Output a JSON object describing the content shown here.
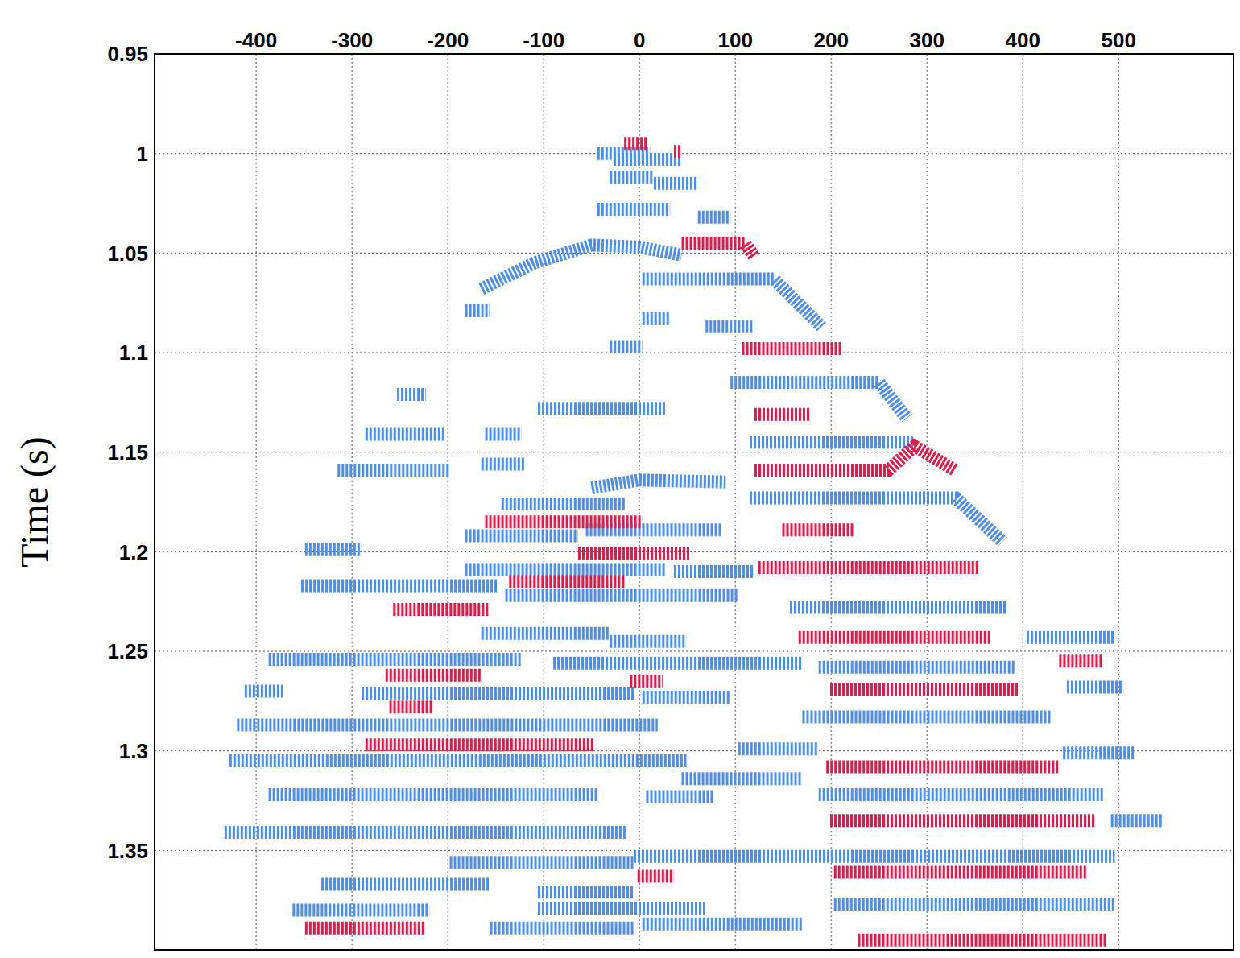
{
  "chart_data": {
    "type": "line",
    "y_label": "Time (s)",
    "xlim": [
      -506,
      620
    ],
    "xticks": [
      -400,
      -300,
      -200,
      -100,
      0,
      100,
      200,
      300,
      400,
      500
    ],
    "ylim": [
      0.95,
      1.4
    ],
    "yticks": [
      0.95,
      1,
      1.05,
      1.1,
      1.15,
      1.2,
      1.25,
      1.3,
      1.35
    ],
    "grid": true,
    "series": [
      {
        "color": "#4a8ef0",
        "line_style": "dashed",
        "x": [
          -44,
          11,
          11,
          -27,
          44,
          44,
          -31,
          15,
          15,
          15,
          61,
          61,
          -44,
          32,
          32,
          61,
          95,
          95,
          -165,
          -110,
          -50,
          0,
          44,
          44,
          3,
          140,
          190,
          190,
          3,
          32,
          32,
          69,
          120,
          120,
          -31,
          3,
          3,
          -182,
          -156,
          -156,
          95,
          250,
          279,
          279,
          -106,
          28,
          28,
          -253,
          -223,
          -223,
          -286,
          -203,
          -203,
          -161,
          -123,
          -123,
          115,
          287,
          287,
          -165,
          -119,
          -119,
          -315,
          -198,
          -198,
          -50,
          0,
          90,
          90,
          115,
          330,
          379,
          379,
          -144,
          -14,
          -14,
          -182,
          -64,
          -64,
          -56,
          86,
          86,
          -349,
          -290,
          -290,
          -182,
          28,
          28,
          36,
          120,
          120,
          -353,
          -148,
          -148,
          -140,
          103,
          103,
          157,
          383,
          383,
          -165,
          -31,
          -31,
          404,
          496,
          496,
          -31,
          49,
          49,
          -387,
          -123,
          -123,
          -90,
          170,
          170,
          187,
          392,
          392,
          446,
          505,
          505,
          -412,
          -370,
          -370,
          -290,
          -6,
          -6,
          3,
          95,
          95,
          170,
          429,
          429,
          -420,
          19,
          19,
          103,
          187,
          187,
          -428,
          49,
          49,
          44,
          170,
          170,
          442,
          517,
          517,
          187,
          484,
          484,
          -387,
          -44,
          -44,
          7,
          78,
          78,
          492,
          546,
          546,
          -433,
          -14,
          -14,
          -6,
          496,
          496,
          -198,
          -6,
          -6,
          -332,
          -156,
          -156,
          -106,
          -6,
          -6,
          203,
          496,
          496,
          -362,
          -219,
          -219,
          -106,
          69,
          69,
          3,
          170,
          170,
          -156,
          -6
        ],
        "values": [
          1.0,
          1.0,
          null,
          1.003,
          1.003,
          null,
          1.012,
          1.012,
          null,
          1.015,
          1.015,
          null,
          1.028,
          1.028,
          null,
          1.032,
          1.032,
          null,
          1.068,
          1.055,
          1.046,
          1.047,
          1.051,
          null,
          1.063,
          1.063,
          1.087,
          null,
          1.083,
          1.083,
          null,
          1.087,
          1.087,
          null,
          1.097,
          1.097,
          null,
          1.079,
          1.079,
          null,
          1.115,
          1.115,
          1.133,
          null,
          1.128,
          1.128,
          null,
          1.121,
          1.121,
          null,
          1.141,
          1.141,
          null,
          1.141,
          1.141,
          null,
          1.145,
          1.145,
          null,
          1.156,
          1.156,
          null,
          1.159,
          1.159,
          null,
          1.168,
          1.164,
          1.165,
          null,
          1.173,
          1.173,
          1.195,
          null,
          1.176,
          1.176,
          null,
          1.192,
          1.192,
          null,
          1.189,
          1.189,
          null,
          1.199,
          1.199,
          null,
          1.209,
          1.209,
          null,
          1.21,
          1.21,
          null,
          1.217,
          1.217,
          null,
          1.222,
          1.222,
          null,
          1.228,
          1.228,
          null,
          1.241,
          1.241,
          null,
          1.243,
          1.243,
          null,
          1.245,
          1.245,
          null,
          1.254,
          1.254,
          null,
          1.256,
          1.256,
          null,
          1.258,
          1.258,
          null,
          1.268,
          1.268,
          null,
          1.27,
          1.27,
          null,
          1.271,
          1.271,
          null,
          1.273,
          1.273,
          null,
          1.283,
          1.283,
          null,
          1.287,
          1.287,
          null,
          1.299,
          1.299,
          null,
          1.305,
          1.305,
          null,
          1.314,
          1.314,
          null,
          1.301,
          1.301,
          null,
          1.322,
          1.322,
          null,
          1.322,
          1.322,
          null,
          1.323,
          1.323,
          null,
          1.335,
          1.335,
          null,
          1.341,
          1.341,
          null,
          1.353,
          1.353,
          null,
          1.356,
          1.356,
          null,
          1.367,
          1.367,
          null,
          1.371,
          1.371,
          null,
          1.377,
          1.377,
          null,
          1.38,
          1.38,
          null,
          1.379,
          1.379,
          null,
          1.387,
          1.387,
          null,
          1.389,
          1.389
        ]
      },
      {
        "color": "#e8174a",
        "line_style": "dashed",
        "x": [
          -16,
          9,
          9,
          36,
          44,
          44,
          44,
          110,
          120,
          120,
          107,
          212,
          212,
          120,
          178,
          178,
          120,
          260,
          287,
          329,
          329,
          149,
          224,
          224,
          -161,
          3,
          3,
          -64,
          53,
          53,
          124,
          354,
          354,
          -136,
          -14,
          -14,
          -257,
          -156,
          -156,
          166,
          367,
          367,
          -265,
          -165,
          -165,
          -10,
          25,
          25,
          199,
          396,
          396,
          438,
          484,
          484,
          -261,
          -215,
          -215,
          -286,
          -48,
          -48,
          195,
          438,
          438,
          199,
          475,
          475,
          203,
          467,
          467,
          -2,
          36,
          36,
          -349,
          -223,
          -223,
          228,
          488
        ],
        "values": [
          0.995,
          0.995,
          null,
          0.999,
          0.999,
          null,
          1.045,
          1.045,
          1.052,
          null,
          1.098,
          1.098,
          null,
          1.131,
          1.131,
          null,
          1.159,
          1.159,
          1.147,
          1.159,
          null,
          1.189,
          1.189,
          null,
          1.185,
          1.185,
          null,
          1.201,
          1.201,
          null,
          1.208,
          1.208,
          null,
          1.215,
          1.215,
          null,
          1.229,
          1.229,
          null,
          1.243,
          1.243,
          null,
          1.262,
          1.262,
          null,
          1.265,
          1.265,
          null,
          1.269,
          1.269,
          null,
          1.255,
          1.255,
          null,
          1.278,
          1.278,
          null,
          1.297,
          1.297,
          null,
          1.308,
          1.308,
          null,
          1.335,
          1.335,
          null,
          1.361,
          1.361,
          null,
          1.363,
          1.363,
          null,
          1.389,
          1.389,
          null,
          1.395,
          1.395
        ]
      }
    ]
  }
}
